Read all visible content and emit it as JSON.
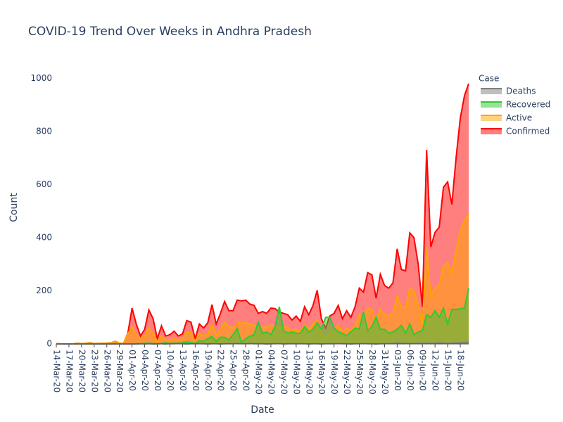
{
  "chart_data": {
    "type": "area",
    "title": "COVID-19 Trend Over Weeks in Andhra Pradesh",
    "x_label": "Date",
    "y_label": "Count",
    "legend_title": "Case",
    "legend_position": "right",
    "grid": false,
    "ylim": [
      0,
      1030
    ],
    "yticks": [
      0,
      200,
      400,
      600,
      800,
      1000
    ],
    "categories": [
      "14-Mar-20",
      null,
      null,
      "17-Mar-20",
      null,
      null,
      "20-Mar-20",
      null,
      null,
      "23-Mar-20",
      null,
      null,
      "26-Mar-20",
      null,
      null,
      "29-Mar-20",
      null,
      null,
      "01-Apr-20",
      null,
      null,
      "04-Apr-20",
      null,
      null,
      "07-Apr-20",
      null,
      null,
      "10-Apr-20",
      null,
      null,
      "13-Apr-20",
      null,
      null,
      "16-Apr-20",
      null,
      null,
      "19-Apr-20",
      null,
      null,
      "22-Apr-20",
      null,
      null,
      "25-Apr-20",
      null,
      null,
      "28-Apr-20",
      null,
      null,
      "01-May-20",
      null,
      null,
      "04-May-20",
      null,
      null,
      "07-May-20",
      null,
      null,
      "10-May-20",
      null,
      null,
      "13-May-20",
      null,
      null,
      "16-May-20",
      null,
      null,
      "19-May-20",
      null,
      null,
      "22-May-20",
      null,
      null,
      "25-May-20",
      null,
      null,
      "28-May-20",
      null,
      null,
      "31-May-20",
      null,
      null,
      "03-Jun-20",
      null,
      null,
      "06-Jun-20",
      null,
      null,
      "09-Jun-20",
      null,
      null,
      "12-Jun-20",
      null,
      null,
      "15-Jun-20",
      null,
      null,
      "18-Jun-20",
      null,
      null
    ],
    "series": [
      {
        "name": "Deaths",
        "color": "#808080",
        "values": [
          0,
          0,
          0,
          0,
          0,
          0,
          0,
          0,
          0,
          0,
          0,
          0,
          0,
          0,
          0,
          0,
          0,
          0,
          0,
          0,
          1,
          0,
          1,
          0,
          1,
          1,
          0,
          1,
          1,
          2,
          1,
          0,
          1,
          1,
          1,
          1,
          0,
          1,
          1,
          0,
          1,
          1,
          1,
          2,
          1,
          1,
          2,
          1,
          1,
          1,
          0,
          1,
          1,
          2,
          0,
          1,
          1,
          1,
          1,
          1,
          0,
          1,
          1,
          0,
          1,
          1,
          1,
          2,
          1,
          1,
          0,
          1,
          1,
          2,
          1,
          1,
          0,
          1,
          1,
          2,
          1,
          4,
          2,
          3,
          1,
          2,
          3,
          2,
          3,
          2,
          3,
          4,
          3,
          2,
          3,
          4,
          5,
          6,
          7
        ]
      },
      {
        "name": "Recovered",
        "color": "#32c832",
        "values": [
          0,
          0,
          0,
          0,
          0,
          0,
          0,
          0,
          0,
          0,
          0,
          0,
          0,
          0,
          0,
          0,
          0,
          0,
          0,
          1,
          1,
          2,
          3,
          1,
          0,
          2,
          5,
          2,
          3,
          3,
          5,
          8,
          5,
          2,
          12,
          10,
          20,
          28,
          10,
          25,
          25,
          15,
          35,
          58,
          5,
          20,
          28,
          35,
          82,
          40,
          45,
          35,
          65,
          140,
          50,
          40,
          45,
          40,
          40,
          65,
          45,
          55,
          80,
          55,
          100,
          100,
          60,
          45,
          40,
          30,
          45,
          60,
          55,
          120,
          50,
          65,
          100,
          55,
          55,
          40,
          45,
          55,
          70,
          40,
          75,
          35,
          45,
          50,
          110,
          100,
          125,
          100,
          135,
          75,
          130,
          130,
          132,
          135,
          210
        ]
      },
      {
        "name": "Active",
        "color": "#ffa500",
        "values": [
          1,
          0,
          0,
          0,
          0,
          3,
          1,
          2,
          5,
          1,
          2,
          2,
          3,
          4,
          10,
          3,
          2,
          38,
          65,
          35,
          20,
          30,
          60,
          40,
          10,
          30,
          15,
          15,
          20,
          15,
          20,
          45,
          42,
          10,
          40,
          30,
          40,
          75,
          35,
          55,
          80,
          65,
          60,
          80,
          78,
          80,
          75,
          70,
          65,
          60,
          65,
          70,
          68,
          62,
          65,
          60,
          50,
          55,
          45,
          70,
          55,
          72,
          90,
          40,
          25,
          45,
          55,
          70,
          45,
          60,
          50,
          70,
          110,
          100,
          135,
          130,
          85,
          130,
          110,
          105,
          115,
          180,
          140,
          135,
          210,
          200,
          150,
          70,
          365,
          180,
          210,
          220,
          295,
          305,
          265,
          350,
          425,
          465,
          490
        ]
      },
      {
        "name": "Confirmed",
        "color": "#ff0000",
        "values": [
          1,
          0,
          0,
          0,
          0,
          3,
          1,
          2,
          5,
          1,
          2,
          2,
          3,
          4,
          10,
          3,
          2,
          40,
          135,
          75,
          30,
          55,
          128,
          95,
          20,
          68,
          30,
          35,
          48,
          30,
          38,
          88,
          82,
          20,
          75,
          60,
          80,
          148,
          75,
          115,
          160,
          125,
          125,
          165,
          162,
          165,
          150,
          145,
          115,
          122,
          115,
          135,
          133,
          120,
          115,
          110,
          90,
          105,
          85,
          140,
          110,
          145,
          202,
          95,
          60,
          105,
          115,
          145,
          95,
          125,
          100,
          140,
          210,
          195,
          268,
          260,
          172,
          262,
          220,
          210,
          230,
          358,
          280,
          275,
          418,
          400,
          300,
          140,
          730,
          365,
          420,
          440,
          590,
          610,
          525,
          700,
          850,
          935,
          980
        ]
      }
    ]
  }
}
